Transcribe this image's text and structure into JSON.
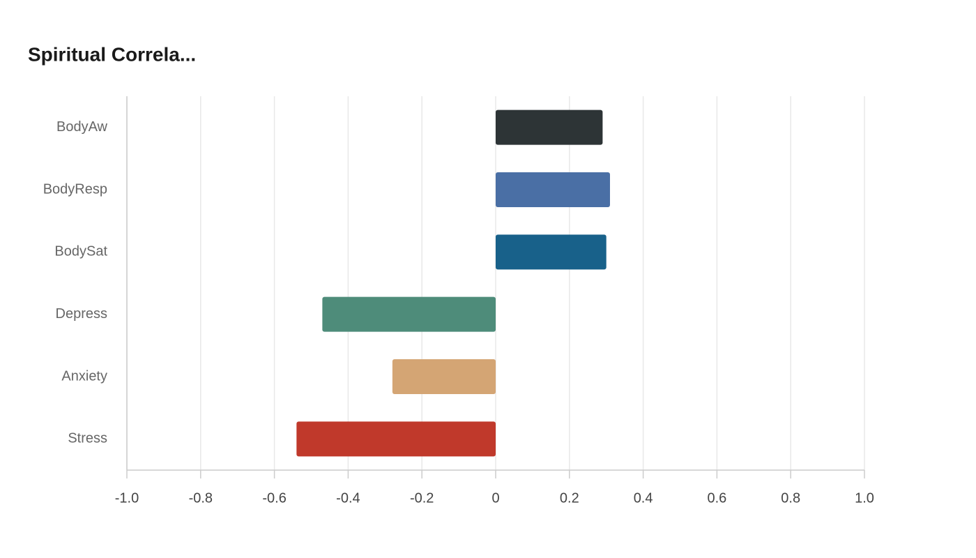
{
  "chart_data": {
    "type": "hbar",
    "title": "Spiritual Correla...",
    "categories": [
      "BodyAw",
      "BodyResp",
      "BodySat",
      "Depress",
      "Anxiety",
      "Stress"
    ],
    "values": [
      0.29,
      0.31,
      0.3,
      -0.47,
      -0.28,
      -0.54
    ],
    "colors": [
      "#2d3436",
      "#4a6fa5",
      "#18618a",
      "#4e8c7a",
      "#d4a574",
      "#c0392b"
    ],
    "xlim": [
      -1,
      1
    ],
    "xticks": [
      {
        "value": -1,
        "label": "-1.0"
      },
      -0.8,
      -0.6,
      -0.4,
      -0.2,
      0,
      0.2,
      0.4,
      0.6,
      0.8,
      {
        "value": 1,
        "label": "1.0"
      }
    ],
    "grid": true
  }
}
